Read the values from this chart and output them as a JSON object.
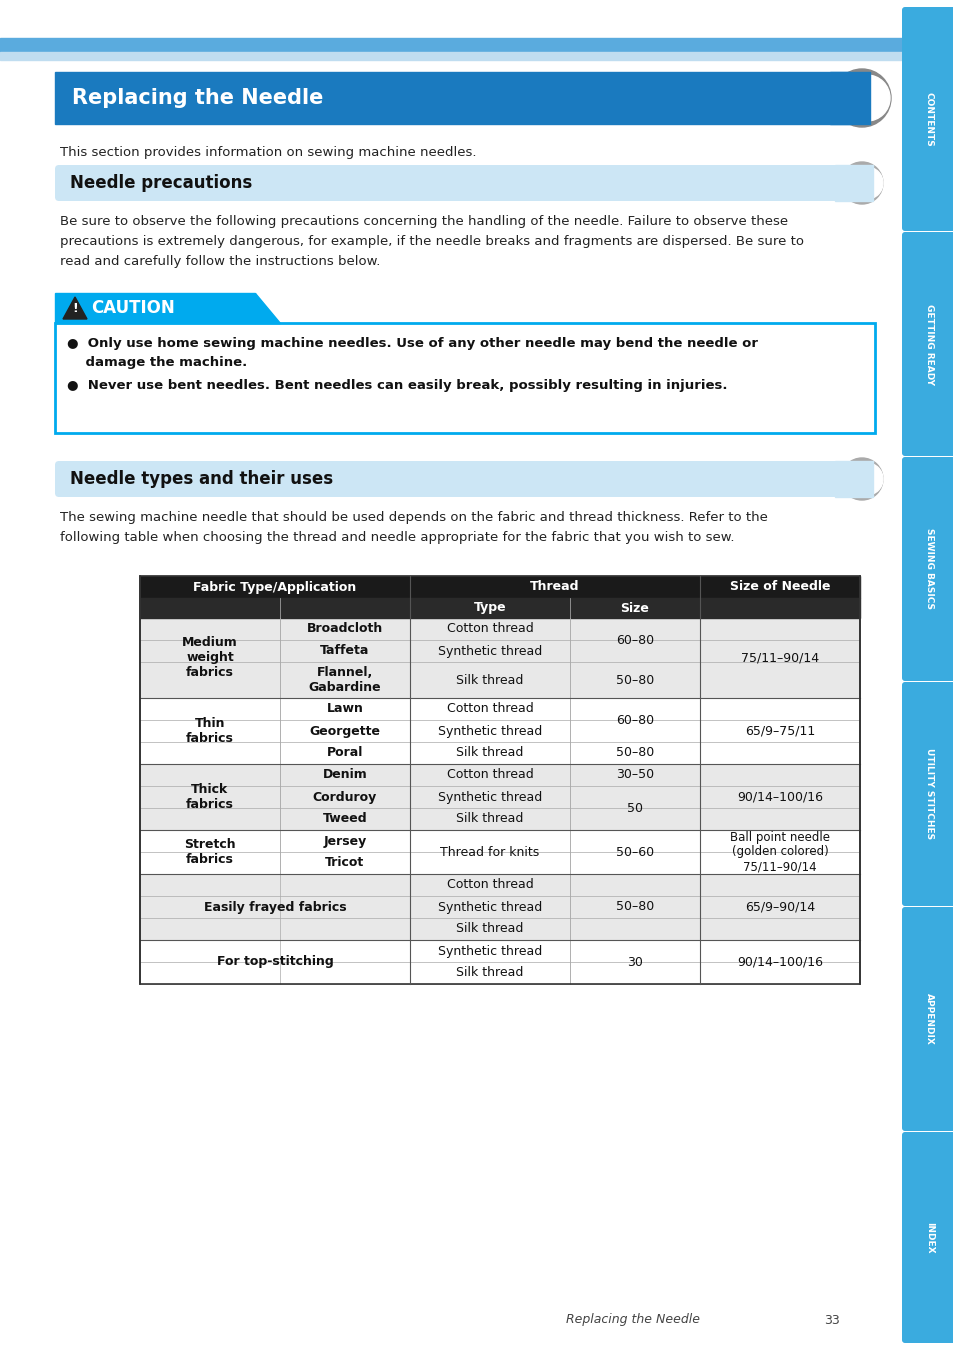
{
  "page_title": "Replacing the Needle",
  "page_subtitle": "This section provides information on sewing machine needles.",
  "section1_title": "Needle precautions",
  "section1_text": "Be sure to observe the following precautions concerning the handling of the needle. Failure to observe these\nprecautions is extremely dangerous, for example, if the needle breaks and fragments are dispersed. Be sure to\nread and carefully follow the instructions below.",
  "section2_title": "Needle types and their uses",
  "section2_text": "The sewing machine needle that should be used depends on the fabric and thread thickness. Refer to the\nfollowing table when choosing the thread and needle appropriate for the fabric that you wish to sew.",
  "caution_line1": "●  Only use home sewing machine needles. Use of any other needle may bend the needle or",
  "caution_line2": "    damage the machine.",
  "caution_line3": "●  Never use bent needles. Bent needles can easily break, possibly resulting in injuries.",
  "sidebar_labels": [
    "CONTENTS",
    "GETTING READY",
    "SEWING BASICS",
    "UTILITY STITCHES",
    "APPENDIX",
    "INDEX"
  ],
  "sidebar_color": "#3aabdf",
  "header_bar_color": "#1a7abf",
  "section_header_color": "#d0e8f5",
  "page_bg": "#ffffff",
  "footer_text": "Replacing the Needle",
  "footer_page": "33",
  "top_stripe1_color": "#5aabde",
  "top_stripe2_color": "#c0ddf0"
}
